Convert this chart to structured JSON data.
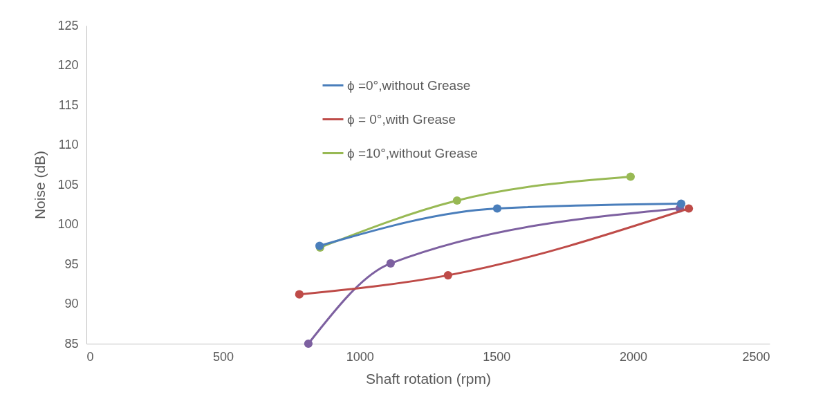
{
  "chart_data": {
    "type": "line",
    "xlabel": "Shaft rotation (rpm)",
    "ylabel": "Noise (dB)",
    "xlim": [
      0,
      2500
    ],
    "xticks": [
      0,
      500,
      1000,
      1500,
      2000,
      2500
    ],
    "ylim": [
      85,
      125
    ],
    "yticks": [
      85,
      90,
      95,
      100,
      105,
      110,
      115,
      120,
      125
    ],
    "grid": false,
    "legend": "top",
    "marker": "circle",
    "line_style": "solid",
    "series": [
      {
        "name": "ϕ =0°,without Grease",
        "color": "#4a7ebb",
        "x": [
          853,
          1503,
          2176
        ],
        "values": [
          97.3,
          102.0,
          102.6
        ]
      },
      {
        "name": "ϕ = 0°,with Grease",
        "color": "#be4b48",
        "x": [
          779,
          1323,
          2204
        ],
        "values": [
          91.2,
          93.6,
          102.0
        ]
      },
      {
        "name": "ϕ =10°,without Grease",
        "color": "#98b954",
        "x": [
          855,
          1356,
          1991
        ],
        "values": [
          97.1,
          103.0,
          106.0
        ]
      },
      {
        "color": "#7d60a0",
        "x": [
          812,
          1113,
          2171
        ],
        "values": [
          85,
          95.1,
          102.0
        ]
      }
    ]
  }
}
